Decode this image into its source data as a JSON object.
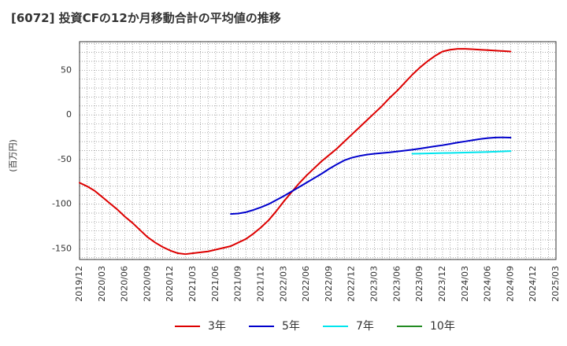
{
  "chart_data": {
    "type": "line",
    "title": "[6072]  投資CFの12か月移動合計の平均値の推移",
    "ylabel": "(百万円)",
    "xlabel": "",
    "ylim": [
      -162,
      82
    ],
    "y_ticks": [
      50,
      0,
      -50,
      -100,
      -150
    ],
    "x_tick_labels": [
      "2019/12",
      "2020/03",
      "2020/06",
      "2020/09",
      "2020/12",
      "2021/03",
      "2021/06",
      "2021/09",
      "2021/12",
      "2022/03",
      "2022/06",
      "2022/09",
      "2022/12",
      "2023/03",
      "2023/06",
      "2023/09",
      "2023/12",
      "2024/03",
      "2024/06",
      "2024/09",
      "2024/12",
      "2025/03"
    ],
    "grid": true,
    "legend_position": "bottom",
    "series": [
      {
        "name": "3年",
        "color": "#dd0000",
        "x": [
          "2019/12",
          "2020/01",
          "2020/02",
          "2020/03",
          "2020/04",
          "2020/05",
          "2020/06",
          "2020/07",
          "2020/08",
          "2020/09",
          "2020/10",
          "2020/11",
          "2020/12",
          "2021/01",
          "2021/02",
          "2021/03",
          "2021/04",
          "2021/05",
          "2021/06",
          "2021/07",
          "2021/08",
          "2021/09",
          "2021/10",
          "2021/11",
          "2021/12",
          "2022/01",
          "2022/02",
          "2022/03",
          "2022/04",
          "2022/05",
          "2022/06",
          "2022/07",
          "2022/08",
          "2022/09",
          "2022/10",
          "2022/11",
          "2022/12",
          "2023/01",
          "2023/02",
          "2023/03",
          "2023/04",
          "2023/05",
          "2023/06",
          "2023/07",
          "2023/08",
          "2023/09",
          "2023/10",
          "2023/11",
          "2023/12",
          "2024/01",
          "2024/02",
          "2024/03",
          "2024/04",
          "2024/05",
          "2024/06",
          "2024/07",
          "2024/08",
          "2024/09"
        ],
        "values": [
          -76,
          -80,
          -85,
          -92,
          -99,
          -106,
          -114,
          -121,
          -129,
          -137,
          -143,
          -148,
          -152,
          -155,
          -156,
          -155,
          -154,
          -153,
          -151,
          -149,
          -147,
          -143,
          -139,
          -133,
          -126,
          -118,
          -108,
          -97,
          -87,
          -77,
          -68,
          -60,
          -52,
          -45,
          -38,
          -30,
          -22,
          -14,
          -6,
          2,
          10,
          19,
          27,
          36,
          45,
          53,
          60,
          66,
          71,
          73,
          74,
          74,
          73.5,
          73,
          72.5,
          72,
          71.5,
          71
        ]
      },
      {
        "name": "5年",
        "color": "#0000cc",
        "x": [
          "2021/08",
          "2021/09",
          "2021/10",
          "2021/11",
          "2021/12",
          "2022/01",
          "2022/02",
          "2022/03",
          "2022/04",
          "2022/05",
          "2022/06",
          "2022/07",
          "2022/08",
          "2022/09",
          "2022/10",
          "2022/11",
          "2022/12",
          "2023/01",
          "2023/02",
          "2023/03",
          "2023/04",
          "2023/05",
          "2023/06",
          "2023/07",
          "2023/08",
          "2023/09",
          "2023/10",
          "2023/11",
          "2023/12",
          "2024/01",
          "2024/02",
          "2024/03",
          "2024/04",
          "2024/05",
          "2024/06",
          "2024/07",
          "2024/08",
          "2024/09"
        ],
        "values": [
          -111,
          -110.5,
          -109,
          -106.5,
          -103.5,
          -100,
          -95.5,
          -91,
          -86,
          -81,
          -76,
          -71,
          -66,
          -60.5,
          -55.5,
          -51,
          -48,
          -46,
          -44.5,
          -43.5,
          -42.8,
          -42,
          -41,
          -40,
          -39,
          -37.8,
          -36.5,
          -35.2,
          -34,
          -32.5,
          -31,
          -29.7,
          -28.3,
          -27,
          -26,
          -25.4,
          -25.2,
          -25.5
        ]
      },
      {
        "name": "7年",
        "color": "#00e5ee",
        "x": [
          "2023/08",
          "2023/09",
          "2023/10",
          "2023/11",
          "2023/12",
          "2024/01",
          "2024/02",
          "2024/03",
          "2024/04",
          "2024/05",
          "2024/06",
          "2024/07",
          "2024/08",
          "2024/09"
        ],
        "values": [
          -43.5,
          -43.4,
          -43.2,
          -43,
          -42.8,
          -42.6,
          -42.4,
          -42.2,
          -42,
          -41.8,
          -41.5,
          -41.2,
          -40.9,
          -40.6
        ]
      },
      {
        "name": "10年",
        "color": "#228b22",
        "x": [],
        "values": []
      }
    ]
  }
}
